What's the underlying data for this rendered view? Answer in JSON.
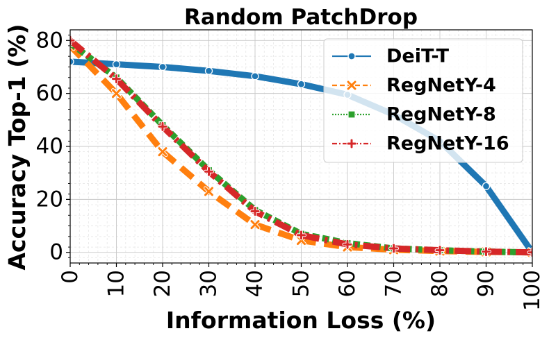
{
  "chart_data": {
    "type": "line",
    "title": "Random PatchDrop",
    "xlabel": "Information Loss (%)",
    "ylabel": "Accuracy Top-1 (%)",
    "xlim": [
      0,
      100
    ],
    "ylim": [
      -4,
      84
    ],
    "xticks": [
      0,
      10,
      20,
      30,
      40,
      50,
      60,
      70,
      80,
      90,
      100
    ],
    "yticks": [
      0,
      20,
      40,
      60,
      80
    ],
    "grid": true,
    "legend_position": "top-right",
    "x": [
      0,
      10,
      20,
      30,
      40,
      50,
      60,
      70,
      80,
      90,
      100
    ],
    "series": [
      {
        "name": "DeiT-T",
        "color": "#1f77b4",
        "marker": "circle",
        "dash": "solid",
        "values": [
          72,
          71,
          70,
          68.5,
          66.5,
          63.5,
          59.5,
          52,
          42,
          25,
          0
        ]
      },
      {
        "name": "RegNetY-4",
        "color": "#ff7f0e",
        "marker": "x",
        "dash": "dashed",
        "values": [
          78,
          60,
          38,
          23,
          10.5,
          4.5,
          2,
          1,
          0.5,
          0.2,
          0
        ]
      },
      {
        "name": "RegNetY-8",
        "color": "#2ca02c",
        "marker": "square",
        "dash": "dotted",
        "values": [
          79,
          66,
          48,
          31,
          16,
          7,
          3.5,
          1.5,
          0.8,
          0.3,
          0
        ]
      },
      {
        "name": "RegNetY-16",
        "color": "#d62728",
        "marker": "plus",
        "dash": "dashdot",
        "values": [
          80,
          65.5,
          47.5,
          30.5,
          15.5,
          6.5,
          3,
          1.5,
          0.8,
          0.3,
          0
        ]
      }
    ]
  }
}
